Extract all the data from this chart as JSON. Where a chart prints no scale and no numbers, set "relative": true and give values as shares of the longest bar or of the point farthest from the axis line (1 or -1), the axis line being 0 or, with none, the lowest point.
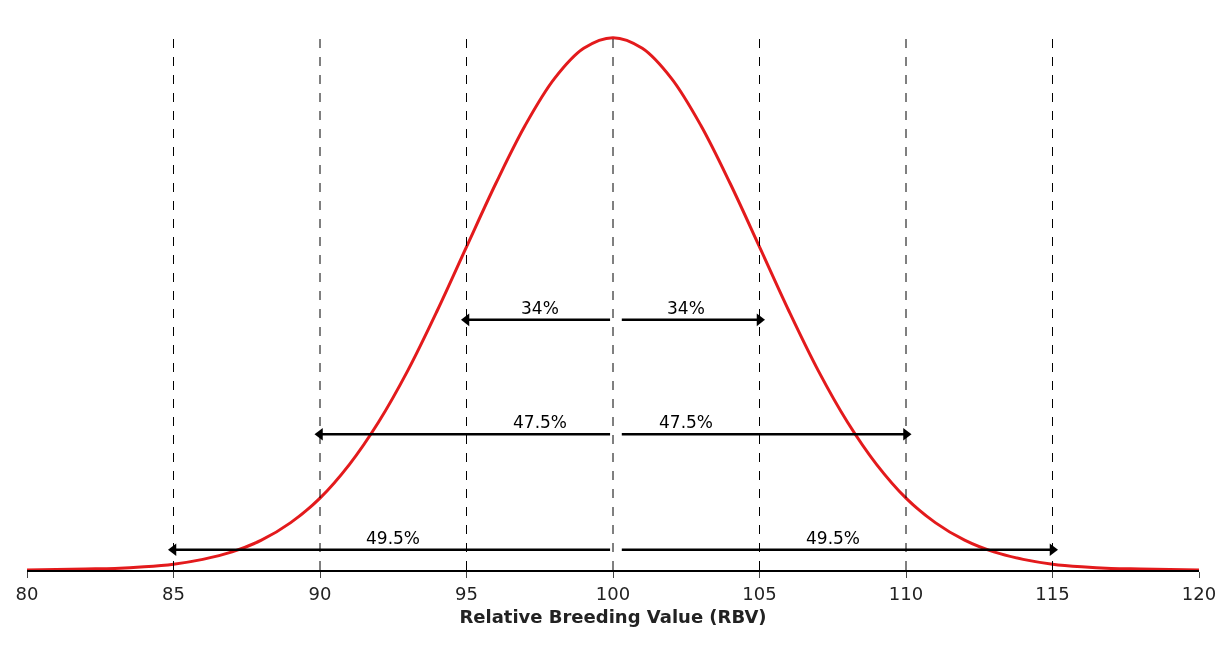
{
  "chart_data": {
    "type": "line",
    "relative": true,
    "xlabel": "Relative Breeding Value (RBV)",
    "xlim": [
      80,
      120
    ],
    "xticks": [
      80,
      85,
      90,
      95,
      100,
      105,
      110,
      115,
      120
    ],
    "tick_labels": "x",
    "series": [
      {
        "color": "#e31a1c",
        "x": [
          80,
          81,
          82,
          83,
          84,
          85,
          86,
          87,
          88,
          89,
          90,
          91,
          92,
          93,
          94,
          95,
          96,
          97,
          98,
          99,
          100,
          101,
          102,
          103,
          104,
          105,
          106,
          107,
          108,
          109,
          110,
          111,
          112,
          113,
          114,
          115,
          116,
          117,
          118,
          119,
          120
        ],
        "values": [
          0.0,
          0.001,
          0.002,
          0.003,
          0.006,
          0.011,
          0.02,
          0.034,
          0.056,
          0.089,
          0.135,
          0.198,
          0.278,
          0.375,
          0.487,
          0.607,
          0.726,
          0.835,
          0.923,
          0.98,
          1.0,
          0.98,
          0.923,
          0.835,
          0.726,
          0.607,
          0.487,
          0.375,
          0.278,
          0.198,
          0.135,
          0.089,
          0.056,
          0.034,
          0.02,
          0.011,
          0.006,
          0.003,
          0.002,
          0.001,
          0.0
        ]
      },
      {
        "type": "line",
        "color": "#000000",
        "marker": "triangle",
        "x": [
          99.9,
          95
        ],
        "values": [
          0.47,
          0.47
        ]
      },
      {
        "type": "line",
        "color": "#000000",
        "marker": "triangle",
        "x": [
          100.3,
          105
        ],
        "values": [
          0.47,
          0.47
        ]
      },
      {
        "type": "line",
        "color": "#000000",
        "marker": "triangle",
        "x": [
          99.9,
          90
        ],
        "values": [
          0.255,
          0.255
        ]
      },
      {
        "type": "line",
        "color": "#000000",
        "marker": "triangle",
        "x": [
          100.3,
          110
        ],
        "values": [
          0.255,
          0.255
        ]
      },
      {
        "type": "line",
        "color": "#000000",
        "marker": "triangle",
        "x": [
          99.9,
          85
        ],
        "values": [
          0.038,
          0.038
        ]
      },
      {
        "type": "line",
        "color": "#000000",
        "marker": "triangle",
        "x": [
          100.3,
          115
        ],
        "values": [
          0.038,
          0.038
        ]
      }
    ],
    "annotations": [
      {
        "text": "34%",
        "x": 97.5,
        "y": 0.47
      },
      {
        "text": "34%",
        "x": 102.5,
        "y": 0.47
      },
      {
        "text": "47.5%",
        "x": 97.5,
        "y": 0.255
      },
      {
        "text": "47.5%",
        "x": 102.5,
        "y": 0.255
      },
      {
        "text": "49.5%",
        "x": 92.5,
        "y": 0.038
      },
      {
        "text": "49.5%",
        "x": 107.5,
        "y": 0.038
      }
    ],
    "ref_lines": [
      {
        "axis": "x",
        "value": 85,
        "color": "#000000",
        "line_style": "dashed"
      },
      {
        "axis": "x",
        "value": 90,
        "color": "#000000",
        "line_style": "dashed"
      },
      {
        "axis": "x",
        "value": 95,
        "color": "#000000",
        "line_style": "dashed"
      },
      {
        "axis": "x",
        "value": 100,
        "color": "#000000",
        "line_style": "dashed"
      },
      {
        "axis": "x",
        "value": 105,
        "color": "#000000",
        "line_style": "dashed"
      },
      {
        "axis": "x",
        "value": 110,
        "color": "#000000",
        "line_style": "dashed"
      },
      {
        "axis": "x",
        "value": 115,
        "color": "#000000",
        "line_style": "dashed"
      }
    ]
  }
}
